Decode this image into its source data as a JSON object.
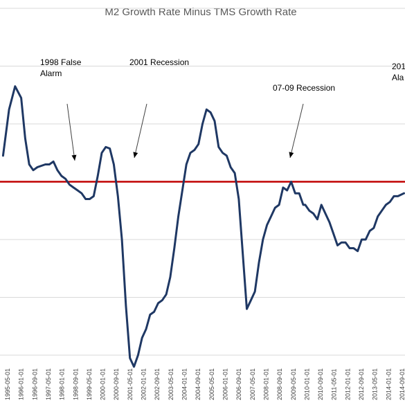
{
  "chart_data": {
    "type": "line",
    "title": "M2 Growth Rate Minus TMS Growth Rate",
    "xlabel": "",
    "ylabel": "",
    "x_tick_labels": [
      "1995-05-01",
      "1996-01-01",
      "1996-09-01",
      "1997-05-01",
      "1998-01-01",
      "1998-09-01",
      "1999-05-01",
      "2000-01-01",
      "2000-09-01",
      "2001-05-01",
      "2002-01-01",
      "2002-09-01",
      "2003-05-01",
      "2004-01-01",
      "2004-09-01",
      "2005-05-01",
      "2006-01-01",
      "2006-09-01",
      "2007-05-01",
      "2008-01-01",
      "2008-09-01",
      "2009-05-01",
      "2010-01-01",
      "2010-09-01",
      "2011-05-01",
      "2012-01-01",
      "2012-09-01",
      "2013-05-01",
      "2014-01-01",
      "2014-09-01"
    ],
    "ylim": [
      -6,
      6
    ],
    "grid": true,
    "reference_line": {
      "value": 0,
      "color": "#c00000"
    },
    "series": [
      {
        "color": "#1f3864",
        "x": [
          1995.0,
          1995.3,
          1995.6,
          1995.9,
          1996.1,
          1996.3,
          1996.5,
          1996.7,
          1996.9,
          1997.1,
          1997.3,
          1997.5,
          1997.7,
          1997.9,
          1998.1,
          1998.3,
          1998.5,
          1998.7,
          1998.9,
          1999.1,
          1999.3,
          1999.5,
          1999.7,
          1999.9,
          2000.1,
          2000.3,
          2000.5,
          2000.7,
          2000.9,
          2001.1,
          2001.3,
          2001.5,
          2001.7,
          2001.9,
          2002.1,
          2002.3,
          2002.5,
          2002.7,
          2002.9,
          2003.1,
          2003.3,
          2003.5,
          2003.7,
          2003.9,
          2004.1,
          2004.3,
          2004.5,
          2004.7,
          2004.9,
          2005.1,
          2005.3,
          2005.5,
          2005.7,
          2005.9,
          2006.1,
          2006.3,
          2006.5,
          2006.7,
          2006.9,
          2007.1,
          2007.3,
          2007.5,
          2007.7,
          2007.9,
          2008.1,
          2008.3,
          2008.5,
          2008.7,
          2008.9,
          2009.1,
          2009.3,
          2009.5,
          2009.7,
          2009.9,
          2010.0,
          2010.2,
          2010.4,
          2010.6,
          2010.8,
          2011.0,
          2011.2,
          2011.4,
          2011.6,
          2011.8,
          2012.0,
          2012.2,
          2012.4,
          2012.6,
          2012.8,
          2013.0,
          2013.2,
          2013.4,
          2013.6,
          2013.8,
          2014.0,
          2014.2,
          2014.4,
          2014.6,
          2014.9
        ],
        "values": [
          0.9,
          2.5,
          3.3,
          2.9,
          1.5,
          0.6,
          0.4,
          0.5,
          0.55,
          0.6,
          0.6,
          0.7,
          0.4,
          0.2,
          0.1,
          -0.1,
          -0.2,
          -0.3,
          -0.4,
          -0.6,
          -0.6,
          -0.5,
          0.2,
          1.0,
          1.2,
          1.15,
          0.6,
          -0.5,
          -2.0,
          -4.3,
          -6.1,
          -6.4,
          -6.0,
          -5.4,
          -5.1,
          -4.6,
          -4.5,
          -4.2,
          -4.1,
          -3.9,
          -3.3,
          -2.3,
          -1.2,
          -0.3,
          0.6,
          1.0,
          1.1,
          1.3,
          2.0,
          2.5,
          2.4,
          2.1,
          1.2,
          1.0,
          0.9,
          0.5,
          0.3,
          -0.6,
          -2.5,
          -4.4,
          -4.1,
          -3.8,
          -2.8,
          -2.0,
          -1.5,
          -1.2,
          -0.9,
          -0.8,
          -0.2,
          -0.3,
          0.0,
          -0.4,
          -0.4,
          -0.8,
          -0.8,
          -1.0,
          -1.1,
          -1.3,
          -0.8,
          -1.1,
          -1.4,
          -1.8,
          -2.2,
          -2.1,
          -2.1,
          -2.3,
          -2.3,
          -2.4,
          -2.0,
          -2.0,
          -1.7,
          -1.6,
          -1.2,
          -1.0,
          -0.8,
          -0.7,
          -0.5,
          -0.5,
          -0.4
        ]
      }
    ],
    "annotations": [
      {
        "lines": [
          "1998 False",
          "Alarm"
        ]
      },
      {
        "lines": [
          "2001 Recession"
        ]
      },
      {
        "lines": [
          "07-09 Recession"
        ]
      },
      {
        "lines": [
          "201",
          "Ala"
        ]
      }
    ]
  }
}
